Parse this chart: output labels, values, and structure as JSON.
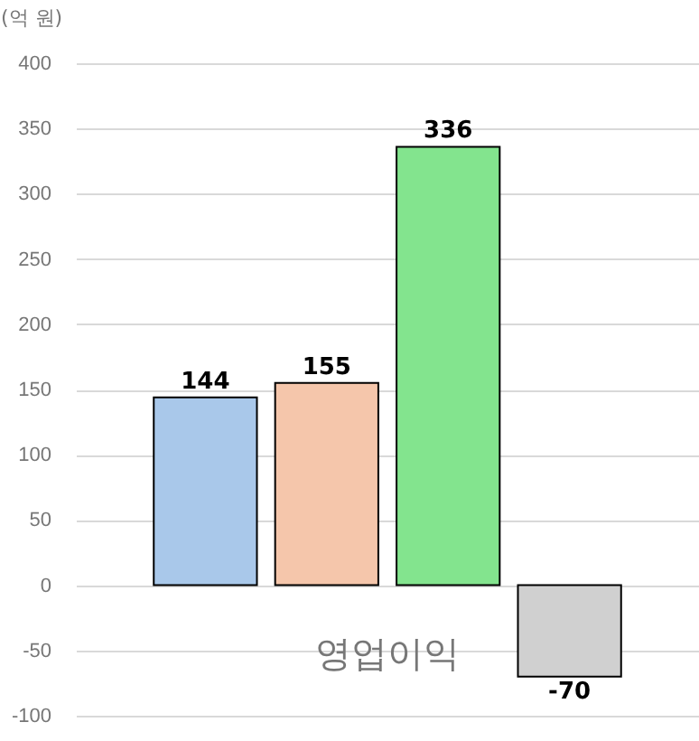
{
  "chart_data": {
    "type": "bar",
    "ylabel": "(억 원)",
    "categories": [
      "영업이익"
    ],
    "series": [
      {
        "color": "#a9c8ea",
        "values": [
          144
        ]
      },
      {
        "color": "#f5c6ab",
        "values": [
          155
        ]
      },
      {
        "color": "#83e48e",
        "values": [
          336
        ]
      },
      {
        "color": "#d0d0d0",
        "values": [
          -70
        ]
      }
    ],
    "ylim": [
      -100,
      400
    ],
    "yticks": [
      -100,
      -50,
      0,
      50,
      100,
      150,
      200,
      250,
      300,
      350,
      400
    ],
    "grid": "y",
    "data_labels": true,
    "legend": false
  }
}
